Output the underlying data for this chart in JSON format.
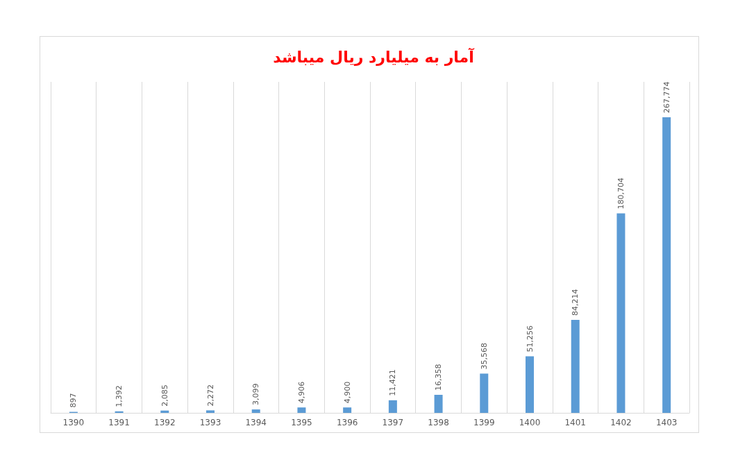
{
  "chart_data": {
    "type": "bar",
    "title": "آمار به میلیارد ریال میباشد",
    "categories": [
      "1390",
      "1391",
      "1392",
      "1393",
      "1394",
      "1395",
      "1396",
      "1397",
      "1398",
      "1399",
      "1400",
      "1401",
      "1402",
      "1403"
    ],
    "values": [
      897,
      1392,
      2085,
      2272,
      3099,
      4906,
      4900,
      11421,
      16358,
      35568,
      51256,
      84214,
      180704,
      267774
    ],
    "color": "#5b9bd5",
    "value_labels": [
      "897",
      "1,392",
      "2,085",
      "2,272",
      "3,099",
      "4,906",
      "4,900",
      "11,421",
      "16,358",
      "35,568",
      "51,256",
      "84,214",
      "180,704",
      "267,774"
    ],
    "grid": "x",
    "tick_labels": "x"
  }
}
